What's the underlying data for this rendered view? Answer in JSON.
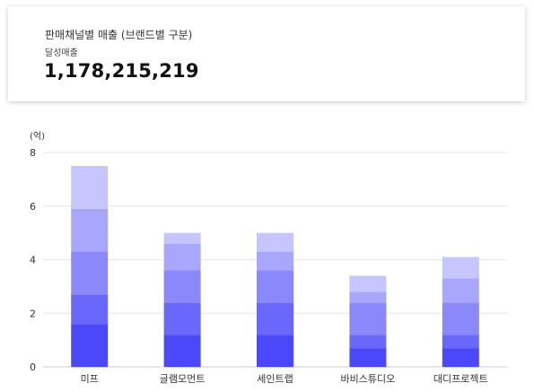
{
  "summary": {
    "title": "판매채널별 매출 (브랜드별 구분)",
    "subtitle": "달성매출",
    "value": "1,178,215,219"
  },
  "chart_data": {
    "type": "bar",
    "stacked": true,
    "unit_label": "(억)",
    "categories": [
      "미프",
      "글램모먼트",
      "세인트랩",
      "바비스튜디오",
      "대디프로젝트"
    ],
    "series": [
      {
        "color": "#4b47fb",
        "values": [
          1.6,
          1.2,
          1.2,
          0.7,
          0.7
        ]
      },
      {
        "color": "#6a67fc",
        "values": [
          1.1,
          1.2,
          1.2,
          0.5,
          0.5
        ]
      },
      {
        "color": "#8b88fc",
        "values": [
          1.6,
          1.2,
          1.2,
          1.2,
          1.2
        ]
      },
      {
        "color": "#a9a7fd",
        "values": [
          1.6,
          1.0,
          0.7,
          0.4,
          0.9
        ]
      },
      {
        "color": "#c7c5fe",
        "values": [
          1.6,
          0.4,
          0.7,
          0.6,
          0.8
        ]
      }
    ],
    "yticks": [
      0,
      2,
      4,
      6,
      8
    ],
    "ylim": [
      0,
      8
    ],
    "grid": true,
    "colors": {
      "grid": "#e6e6e6",
      "axis": "#cccccc"
    }
  }
}
